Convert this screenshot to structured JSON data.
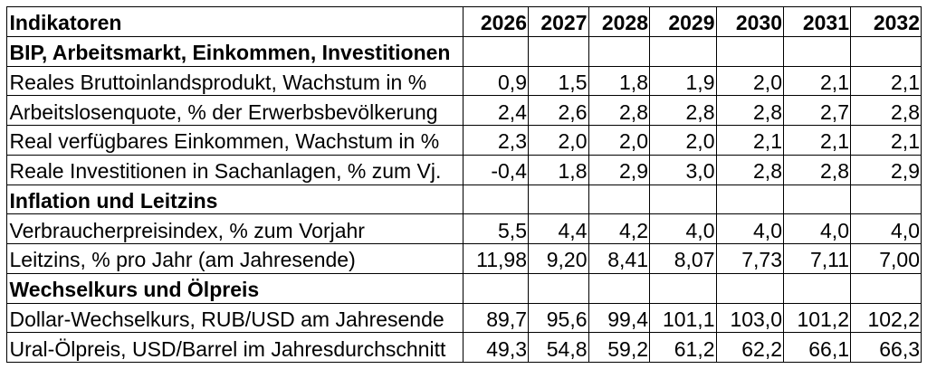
{
  "table": {
    "header": {
      "label": "Indikatoren",
      "years": [
        "2026",
        "2027",
        "2028",
        "2029",
        "2030",
        "2031",
        "2032"
      ]
    },
    "sections": [
      {
        "title": "BIP, Arbeitsmarkt, Einkommen, Investitionen",
        "rows": [
          {
            "label": "Reales Bruttoinlandsprodukt, Wachstum in %",
            "values": [
              "0,9",
              "1,5",
              "1,8",
              "1,9",
              "2,0",
              "2,1",
              "2,1"
            ]
          },
          {
            "label": "Arbeitslosenquote, % der Erwerbsbevölkerung",
            "values": [
              "2,4",
              "2,6",
              "2,8",
              "2,8",
              "2,8",
              "2,7",
              "2,8"
            ]
          },
          {
            "label": "Real verfügbares Einkommen, Wachstum in %",
            "values": [
              "2,3",
              "2,0",
              "2,0",
              "2,0",
              "2,1",
              "2,1",
              "2,1"
            ]
          },
          {
            "label": "Reale Investitionen in Sachanlagen, % zum Vj.",
            "values": [
              "-0,4",
              "1,8",
              "2,9",
              "3,0",
              "2,8",
              "2,8",
              "2,9"
            ]
          }
        ]
      },
      {
        "title": "Inflation und Leitzins",
        "rows": [
          {
            "label": "Verbraucherpreisindex, % zum Vorjahr",
            "values": [
              "5,5",
              "4,4",
              "4,2",
              "4,0",
              "4,0",
              "4,0",
              "4,0"
            ]
          },
          {
            "label": "Leitzins, % pro Jahr (am Jahresende)",
            "values": [
              "11,98",
              "9,20",
              "8,41",
              "8,07",
              "7,73",
              "7,11",
              "7,00"
            ]
          }
        ]
      },
      {
        "title": "Wechselkurs und Ölpreis",
        "rows": [
          {
            "label": "Dollar-Wechselkurs, RUB/USD am Jahresende",
            "values": [
              "89,7",
              "95,6",
              "99,4",
              "101,1",
              "103,0",
              "101,2",
              "102,2"
            ]
          },
          {
            "label": "Ural-Ölpreis, USD/Barrel im Jahresdurchschnitt",
            "values": [
              "49,3",
              "54,8",
              "59,2",
              "61,2",
              "62,2",
              "66,1",
              "66,3"
            ]
          }
        ]
      }
    ]
  },
  "chart_data": {
    "type": "table",
    "title": "Indikatoren",
    "columns": [
      "Indikatoren",
      "2026",
      "2027",
      "2028",
      "2029",
      "2030",
      "2031",
      "2032"
    ],
    "rows": [
      [
        "BIP, Arbeitsmarkt, Einkommen, Investitionen",
        "",
        "",
        "",
        "",
        "",
        "",
        ""
      ],
      [
        "Reales Bruttoinlandsprodukt, Wachstum in %",
        "0,9",
        "1,5",
        "1,8",
        "1,9",
        "2,0",
        "2,1",
        "2,1"
      ],
      [
        "Arbeitslosenquote, % der Erwerbsbevölkerung",
        "2,4",
        "2,6",
        "2,8",
        "2,8",
        "2,8",
        "2,7",
        "2,8"
      ],
      [
        "Real verfügbares Einkommen, Wachstum in %",
        "2,3",
        "2,0",
        "2,0",
        "2,0",
        "2,1",
        "2,1",
        "2,1"
      ],
      [
        "Reale Investitionen in Sachanlagen, % zum Vj.",
        "-0,4",
        "1,8",
        "2,9",
        "3,0",
        "2,8",
        "2,8",
        "2,9"
      ],
      [
        "Inflation und Leitzins",
        "",
        "",
        "",
        "",
        "",
        "",
        ""
      ],
      [
        "Verbraucherpreisindex, % zum Vorjahr",
        "5,5",
        "4,4",
        "4,2",
        "4,0",
        "4,0",
        "4,0",
        "4,0"
      ],
      [
        "Leitzins, % pro Jahr (am Jahresende)",
        "11,98",
        "9,20",
        "8,41",
        "8,07",
        "7,73",
        "7,11",
        "7,00"
      ],
      [
        "Wechselkurs und Ölpreis",
        "",
        "",
        "",
        "",
        "",
        "",
        ""
      ],
      [
        "Dollar-Wechselkurs, RUB/USD am Jahresende",
        "89,7",
        "95,6",
        "99,4",
        "101,1",
        "103,0",
        "101,2",
        "102,2"
      ],
      [
        "Ural-Ölpreis, USD/Barrel im Jahresdurchschnitt",
        "49,3",
        "54,8",
        "59,2",
        "61,2",
        "62,2",
        "66,1",
        "66,3"
      ]
    ]
  }
}
